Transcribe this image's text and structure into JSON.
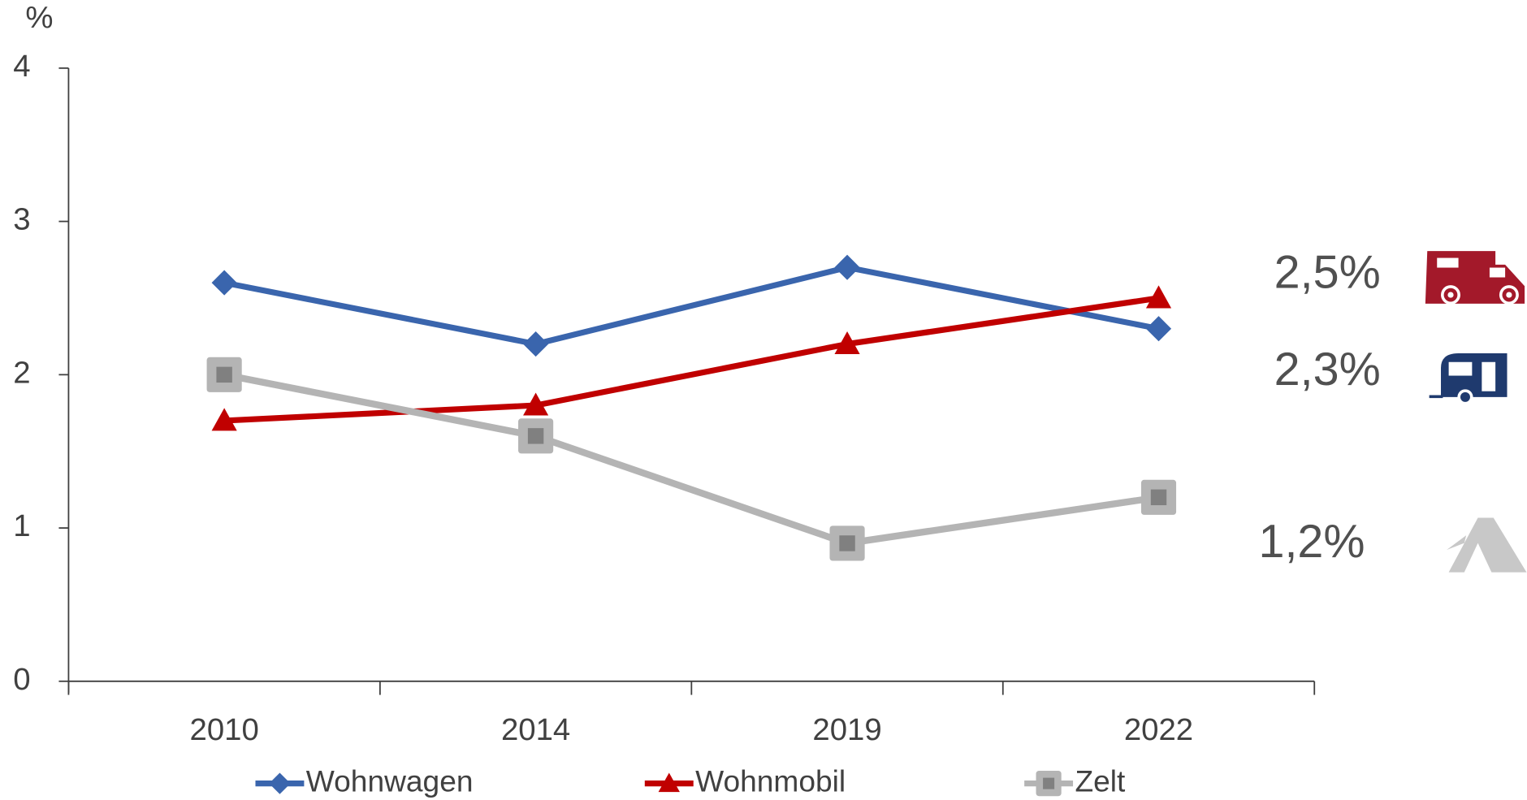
{
  "chart_data": {
    "type": "line",
    "y_axis_label": "%",
    "categories": [
      "2010",
      "2014",
      "2019",
      "2022"
    ],
    "series": [
      {
        "name": "Wohnwagen",
        "color": "#3a65ad",
        "marker": "diamond",
        "values": [
          2.6,
          2.2,
          2.7,
          2.3
        ]
      },
      {
        "name": "Wohnmobil",
        "color": "#c00000",
        "marker": "triangle",
        "values": [
          1.7,
          1.8,
          2.2,
          2.5
        ]
      },
      {
        "name": "Zelt",
        "color": "#b4b4b4",
        "marker": "square",
        "values": [
          2.0,
          1.6,
          0.9,
          1.2
        ]
      }
    ],
    "annotations": [
      "2,5%",
      "2,3%",
      "1,2%"
    ],
    "ylim": [
      0,
      4
    ],
    "yticks": [
      0,
      1,
      2,
      3,
      4
    ],
    "grid": false
  }
}
